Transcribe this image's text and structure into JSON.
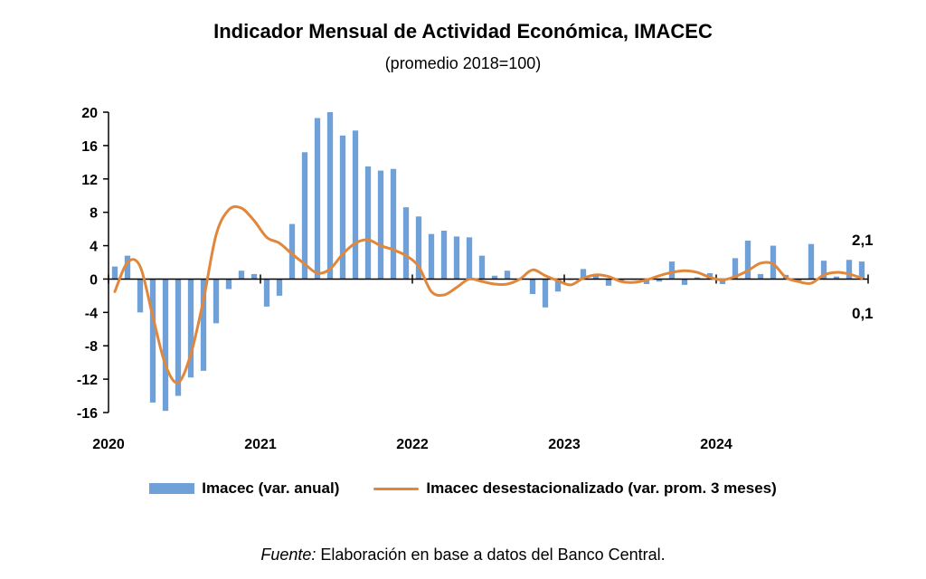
{
  "chart_data": {
    "type": "bar+line",
    "title": "Indicador Mensual de Actividad Económica, IMACEC",
    "subtitle": "(promedio 2018=100)",
    "ylim": [
      -16,
      20
    ],
    "yticks": [
      20,
      16,
      12,
      8,
      4,
      0,
      -4,
      -8,
      -12,
      -16
    ],
    "year_labels": [
      "2020",
      "2021",
      "2022",
      "2023",
      "2024"
    ],
    "series": [
      {
        "name": "Imacec (var. anual)",
        "type": "bar",
        "color": "#6fa0d8",
        "values": [
          1.5,
          2.8,
          -4.0,
          -14.8,
          -15.8,
          -14.0,
          -11.8,
          -11.0,
          -5.3,
          -1.2,
          1.0,
          0.6,
          -3.3,
          -2.0,
          6.6,
          15.2,
          19.3,
          20.0,
          17.2,
          17.8,
          13.5,
          13.0,
          13.2,
          8.6,
          7.5,
          5.4,
          5.8,
          5.1,
          5.0,
          2.8,
          0.4,
          1.0,
          -0.1,
          -1.8,
          -3.4,
          -1.5,
          -0.1,
          1.2,
          0.5,
          -0.8,
          -0.2,
          -0.1,
          -0.6,
          -0.3,
          2.1,
          -0.7,
          0.2,
          0.7,
          -0.6,
          2.5,
          4.6,
          0.6,
          4.0,
          0.5,
          -0.2,
          4.2,
          2.2,
          0.3,
          2.3,
          2.1
        ]
      },
      {
        "name": "Imacec desestacionalizado (var. prom. 3 meses)",
        "type": "line",
        "color": "#e1873c",
        "values": [
          -1.5,
          2.0,
          1.5,
          -4.5,
          -10.3,
          -12.4,
          -9.0,
          -2.5,
          5.3,
          8.3,
          8.5,
          7.0,
          5.0,
          4.3,
          3.0,
          1.8,
          0.7,
          1.2,
          3.0,
          4.3,
          4.7,
          4.0,
          3.5,
          2.8,
          1.5,
          -1.5,
          -1.9,
          -1.0,
          0.0,
          -0.3,
          -0.6,
          -0.6,
          0.0,
          1.1,
          0.4,
          -0.2,
          -0.7,
          0.1,
          0.5,
          0.3,
          -0.3,
          -0.4,
          -0.1,
          0.4,
          0.8,
          1.0,
          0.8,
          0.2,
          -0.1,
          0.3,
          1.0,
          1.9,
          1.8,
          0.2,
          -0.3,
          -0.5,
          0.5,
          0.8,
          0.6,
          0.1
        ]
      }
    ],
    "annotations": {
      "last_bar": "2,1",
      "last_line": "0,1"
    },
    "source_label": "Fuente:",
    "source_text": " Elaboración en base a datos del Banco Central."
  }
}
